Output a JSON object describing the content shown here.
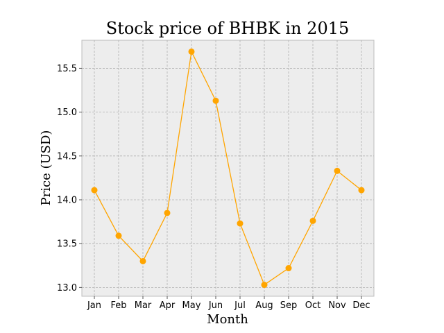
{
  "chart_data": {
    "type": "line",
    "title": "Stock price of BHBK in 2015",
    "xlabel": "Month",
    "ylabel": "Price (USD)",
    "categories": [
      "Jan",
      "Feb",
      "Mar",
      "Apr",
      "May",
      "Jun",
      "Jul",
      "Aug",
      "Sep",
      "Oct",
      "Nov",
      "Dec"
    ],
    "series": [
      {
        "values": [
          14.11,
          13.59,
          13.3,
          13.85,
          15.69,
          15.13,
          13.73,
          13.03,
          13.22,
          13.76,
          14.33,
          14.11
        ],
        "color": "#FFA500"
      }
    ],
    "ylim": [
      12.9,
      15.82
    ],
    "yticks": [
      "13.0",
      "13.5",
      "14.0",
      "14.5",
      "15.0",
      "15.5"
    ],
    "grid": true,
    "background": "#EDEDED"
  }
}
